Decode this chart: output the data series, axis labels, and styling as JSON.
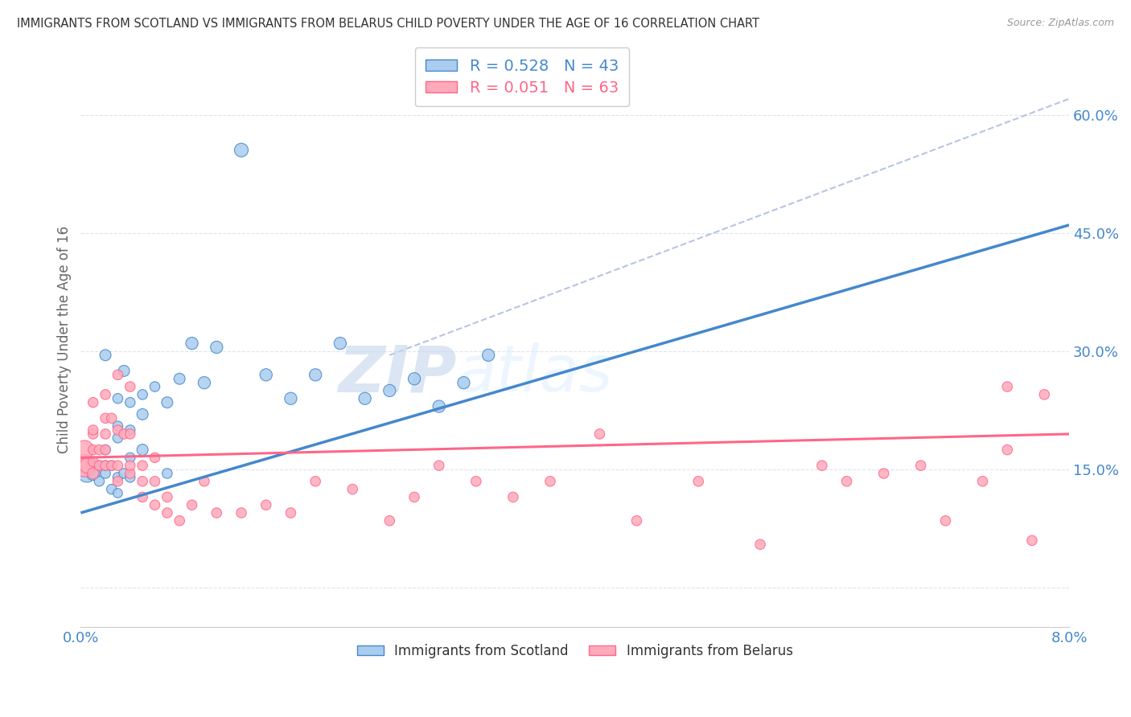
{
  "title": "IMMIGRANTS FROM SCOTLAND VS IMMIGRANTS FROM BELARUS CHILD POVERTY UNDER THE AGE OF 16 CORRELATION CHART",
  "source": "Source: ZipAtlas.com",
  "ylabel": "Child Poverty Under the Age of 16",
  "ylabel_ticks": [
    0.0,
    0.15,
    0.3,
    0.45,
    0.6
  ],
  "ylabel_tick_labels": [
    "",
    "15.0%",
    "30.0%",
    "45.0%",
    "60.0%"
  ],
  "xlim": [
    0.0,
    0.08
  ],
  "ylim": [
    -0.05,
    0.68
  ],
  "color_scotland": "#aaccee",
  "color_scotland_line": "#4488cc",
  "color_scotland_text": "#4488cc",
  "color_belarus": "#ffaabb",
  "color_belarus_line": "#ff6688",
  "color_belarus_text": "#ff6688",
  "color_dashed": "#aabbdd",
  "color_grid": "#dde3ee",
  "background": "#ffffff",
  "watermark_zip": "ZIP",
  "watermark_atlas": "atlas",
  "scotland_x": [
    0.0005,
    0.001,
    0.001,
    0.0015,
    0.0015,
    0.002,
    0.002,
    0.002,
    0.002,
    0.0025,
    0.0025,
    0.003,
    0.003,
    0.003,
    0.003,
    0.003,
    0.0035,
    0.0035,
    0.004,
    0.004,
    0.004,
    0.004,
    0.005,
    0.005,
    0.005,
    0.006,
    0.007,
    0.007,
    0.008,
    0.009,
    0.01,
    0.011,
    0.013,
    0.015,
    0.017,
    0.019,
    0.021,
    0.023,
    0.025,
    0.027,
    0.029,
    0.031,
    0.033
  ],
  "scotland_y": [
    0.145,
    0.145,
    0.155,
    0.135,
    0.155,
    0.145,
    0.155,
    0.175,
    0.295,
    0.125,
    0.155,
    0.12,
    0.14,
    0.19,
    0.205,
    0.24,
    0.145,
    0.275,
    0.14,
    0.165,
    0.2,
    0.235,
    0.175,
    0.22,
    0.245,
    0.255,
    0.145,
    0.235,
    0.265,
    0.31,
    0.26,
    0.305,
    0.555,
    0.27,
    0.24,
    0.27,
    0.31,
    0.24,
    0.25,
    0.265,
    0.23,
    0.26,
    0.295
  ],
  "scotland_sizes": [
    250,
    150,
    100,
    80,
    80,
    80,
    80,
    80,
    100,
    80,
    80,
    70,
    80,
    80,
    80,
    80,
    80,
    100,
    80,
    80,
    80,
    80,
    100,
    100,
    80,
    80,
    80,
    100,
    100,
    120,
    120,
    120,
    150,
    120,
    120,
    120,
    120,
    120,
    120,
    120,
    120,
    120,
    120
  ],
  "belarus_x": [
    0.0003,
    0.0003,
    0.0005,
    0.001,
    0.001,
    0.001,
    0.001,
    0.001,
    0.001,
    0.0015,
    0.0015,
    0.002,
    0.002,
    0.002,
    0.002,
    0.002,
    0.0025,
    0.0025,
    0.003,
    0.003,
    0.003,
    0.003,
    0.0035,
    0.004,
    0.004,
    0.004,
    0.004,
    0.005,
    0.005,
    0.005,
    0.006,
    0.006,
    0.006,
    0.007,
    0.007,
    0.008,
    0.009,
    0.01,
    0.011,
    0.013,
    0.015,
    0.017,
    0.019,
    0.022,
    0.025,
    0.027,
    0.029,
    0.032,
    0.035,
    0.038,
    0.042,
    0.045,
    0.05,
    0.055,
    0.06,
    0.062,
    0.065,
    0.068,
    0.07,
    0.073,
    0.075,
    0.077,
    0.078,
    0.075
  ],
  "belarus_y": [
    0.155,
    0.175,
    0.155,
    0.145,
    0.16,
    0.175,
    0.195,
    0.2,
    0.235,
    0.155,
    0.175,
    0.155,
    0.175,
    0.195,
    0.215,
    0.245,
    0.155,
    0.215,
    0.135,
    0.155,
    0.2,
    0.27,
    0.195,
    0.145,
    0.155,
    0.195,
    0.255,
    0.115,
    0.135,
    0.155,
    0.105,
    0.135,
    0.165,
    0.095,
    0.115,
    0.085,
    0.105,
    0.135,
    0.095,
    0.095,
    0.105,
    0.095,
    0.135,
    0.125,
    0.085,
    0.115,
    0.155,
    0.135,
    0.115,
    0.135,
    0.195,
    0.085,
    0.135,
    0.055,
    0.155,
    0.135,
    0.145,
    0.155,
    0.085,
    0.135,
    0.255,
    0.06,
    0.245,
    0.175
  ],
  "belarus_sizes": [
    400,
    280,
    180,
    100,
    80,
    80,
    80,
    80,
    80,
    80,
    80,
    80,
    80,
    80,
    80,
    80,
    80,
    80,
    80,
    80,
    80,
    80,
    80,
    80,
    80,
    80,
    80,
    80,
    80,
    80,
    80,
    80,
    80,
    80,
    80,
    80,
    80,
    80,
    80,
    80,
    80,
    80,
    80,
    80,
    80,
    80,
    80,
    80,
    80,
    80,
    80,
    80,
    80,
    80,
    80,
    80,
    80,
    80,
    80,
    80,
    80,
    80,
    80,
    80
  ],
  "scotland_trend": [
    0.0,
    0.08,
    0.095,
    0.46
  ],
  "belarus_trend": [
    0.0,
    0.08,
    0.165,
    0.195
  ],
  "dashed_line": [
    0.025,
    0.08,
    0.295,
    0.62
  ]
}
